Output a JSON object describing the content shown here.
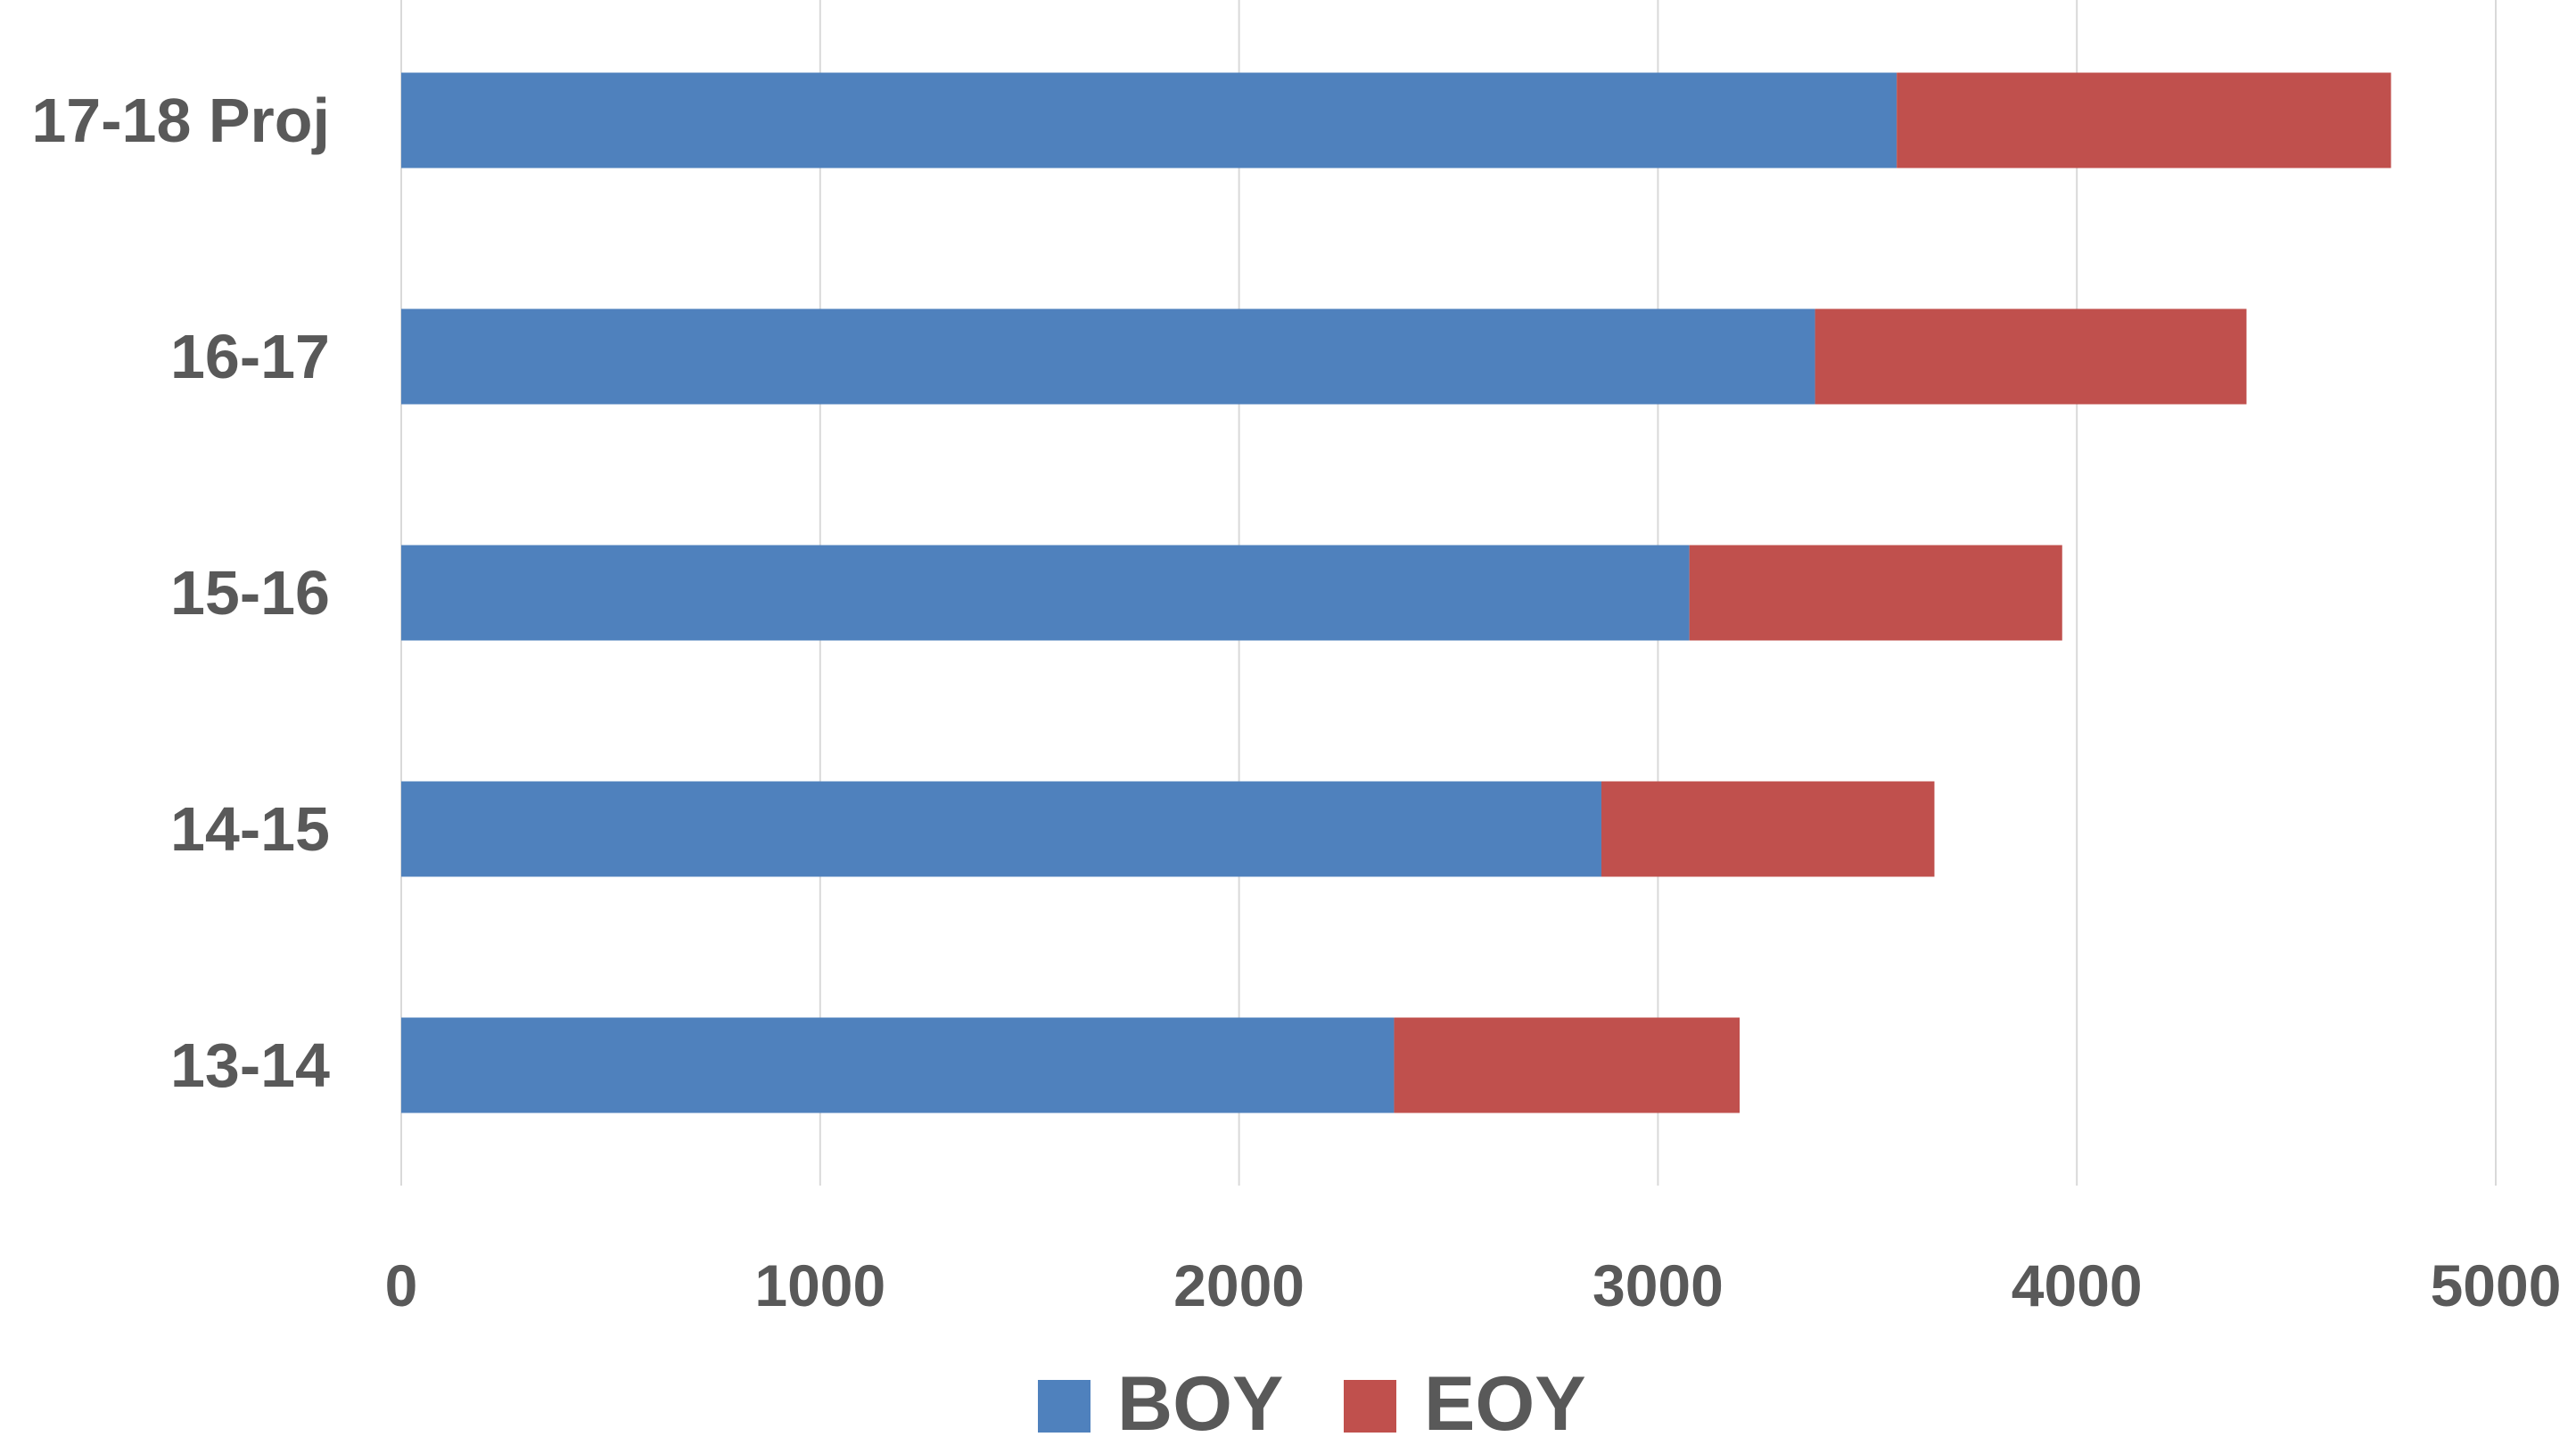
{
  "chart_data": {
    "type": "bar",
    "orientation": "horizontal",
    "stacked": true,
    "categories": [
      "17-18 Proj",
      "16-17",
      "15-16",
      "14-15",
      "13-14"
    ],
    "series": [
      {
        "name": "BOY",
        "color": "#4F81BD",
        "values": [
          3570,
          3375,
          3075,
          2865,
          2370
        ]
      },
      {
        "name": "EOY",
        "color": "#C0504D",
        "values": [
          1180,
          1030,
          890,
          795,
          825
        ]
      }
    ],
    "xlim": [
      0,
      5000
    ],
    "xticks": [
      0,
      1000,
      2000,
      3000,
      4000,
      5000
    ],
    "xtick_labels": [
      "0",
      "1000",
      "2000",
      "3000",
      "4000",
      "5000"
    ],
    "title": "",
    "xlabel": "",
    "ylabel": "",
    "grid": "vertical",
    "legend_position": "bottom"
  }
}
